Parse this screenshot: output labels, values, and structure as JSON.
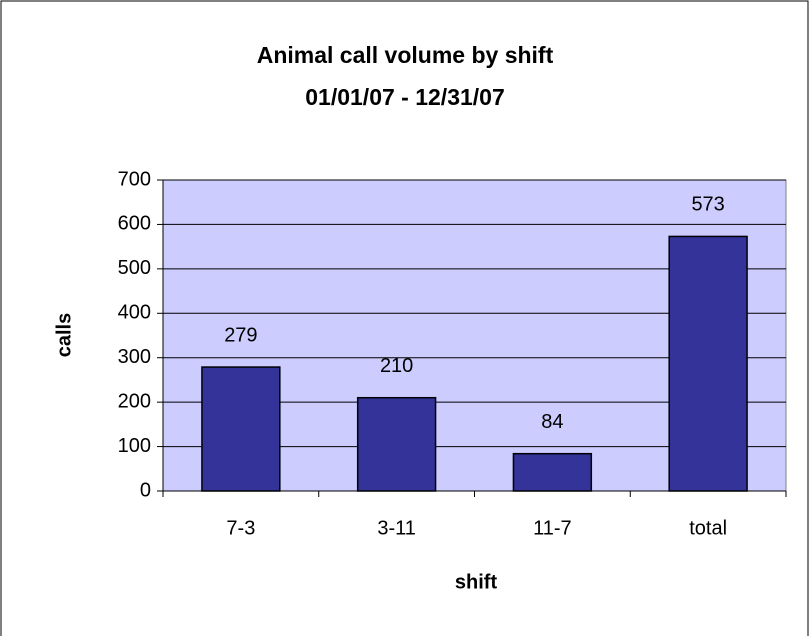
{
  "chart_data": {
    "type": "bar",
    "title": "Animal call volume by shift",
    "subtitle": "01/01/07 - 12/31/07",
    "x_label": "shift",
    "y_label": "calls",
    "categories": [
      "7-3",
      "3-11",
      "11-7",
      "total"
    ],
    "values": [
      279,
      210,
      84,
      573
    ],
    "color": "#333399",
    "background": "#ccccff",
    "ylim": [
      0,
      700
    ],
    "yticks": [
      0,
      100,
      200,
      300,
      400,
      500,
      600,
      700
    ],
    "grid": true
  }
}
